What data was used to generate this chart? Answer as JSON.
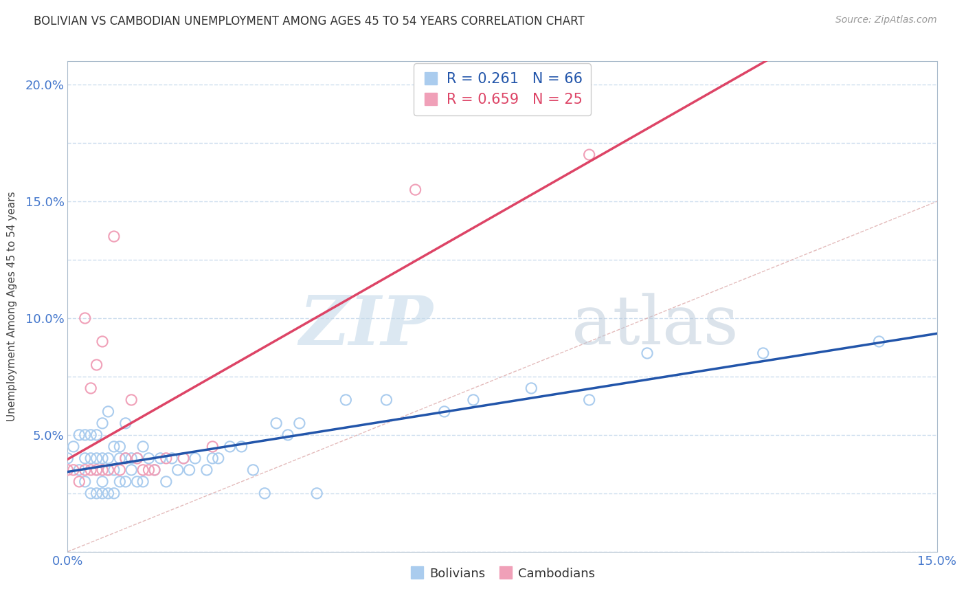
{
  "title": "BOLIVIAN VS CAMBODIAN UNEMPLOYMENT AMONG AGES 45 TO 54 YEARS CORRELATION CHART",
  "source": "Source: ZipAtlas.com",
  "ylabel": "Unemployment Among Ages 45 to 54 years",
  "xlim": [
    0.0,
    0.15
  ],
  "ylim": [
    0.0,
    0.21
  ],
  "xticks": [
    0.0,
    0.015,
    0.03,
    0.045,
    0.06,
    0.075,
    0.09,
    0.105,
    0.12,
    0.135,
    0.15
  ],
  "xtick_labels": [
    "0.0%",
    "",
    "",
    "",
    "",
    "",
    "",
    "",
    "",
    "",
    "15.0%"
  ],
  "yticks": [
    0.0,
    0.025,
    0.05,
    0.075,
    0.1,
    0.125,
    0.15,
    0.175,
    0.2
  ],
  "ytick_labels": [
    "",
    "",
    "5.0%",
    "",
    "10.0%",
    "",
    "15.0%",
    "",
    "20.0%"
  ],
  "bolivian_R": 0.261,
  "bolivian_N": 66,
  "cambodian_R": 0.659,
  "cambodian_N": 25,
  "bolivian_color": "#aaccee",
  "cambodian_color": "#f0a0b8",
  "bolivian_line_color": "#2255aa",
  "cambodian_line_color": "#dd4466",
  "diagonal_color": "#ddaaaa",
  "watermark_zip": "ZIP",
  "watermark_atlas": "atlas",
  "background_color": "#ffffff",
  "grid_color": "#ccddee",
  "bolivians_x": [
    0.0,
    0.001,
    0.002,
    0.002,
    0.003,
    0.003,
    0.003,
    0.004,
    0.004,
    0.004,
    0.005,
    0.005,
    0.005,
    0.005,
    0.006,
    0.006,
    0.006,
    0.006,
    0.007,
    0.007,
    0.007,
    0.007,
    0.008,
    0.008,
    0.008,
    0.009,
    0.009,
    0.009,
    0.01,
    0.01,
    0.01,
    0.011,
    0.011,
    0.012,
    0.012,
    0.013,
    0.013,
    0.014,
    0.015,
    0.016,
    0.017,
    0.018,
    0.019,
    0.02,
    0.021,
    0.022,
    0.024,
    0.025,
    0.026,
    0.028,
    0.03,
    0.032,
    0.034,
    0.036,
    0.038,
    0.04,
    0.043,
    0.048,
    0.055,
    0.065,
    0.07,
    0.08,
    0.09,
    0.1,
    0.12,
    0.14
  ],
  "bolivians_y": [
    0.04,
    0.045,
    0.035,
    0.05,
    0.03,
    0.04,
    0.05,
    0.025,
    0.04,
    0.05,
    0.025,
    0.035,
    0.04,
    0.05,
    0.025,
    0.03,
    0.04,
    0.055,
    0.025,
    0.035,
    0.04,
    0.06,
    0.025,
    0.035,
    0.045,
    0.03,
    0.04,
    0.045,
    0.03,
    0.04,
    0.055,
    0.035,
    0.04,
    0.03,
    0.04,
    0.03,
    0.045,
    0.04,
    0.035,
    0.04,
    0.03,
    0.04,
    0.035,
    0.04,
    0.035,
    0.04,
    0.035,
    0.04,
    0.04,
    0.045,
    0.045,
    0.035,
    0.025,
    0.055,
    0.05,
    0.055,
    0.025,
    0.065,
    0.065,
    0.06,
    0.065,
    0.07,
    0.065,
    0.085,
    0.085,
    0.09
  ],
  "cambodians_x": [
    0.0,
    0.001,
    0.002,
    0.003,
    0.003,
    0.004,
    0.004,
    0.005,
    0.005,
    0.006,
    0.006,
    0.007,
    0.008,
    0.009,
    0.01,
    0.011,
    0.012,
    0.013,
    0.014,
    0.015,
    0.017,
    0.02,
    0.025,
    0.06,
    0.09
  ],
  "cambodians_y": [
    0.035,
    0.035,
    0.03,
    0.035,
    0.1,
    0.035,
    0.07,
    0.035,
    0.08,
    0.035,
    0.09,
    0.035,
    0.135,
    0.035,
    0.04,
    0.065,
    0.04,
    0.035,
    0.035,
    0.035,
    0.04,
    0.04,
    0.045,
    0.155,
    0.17
  ]
}
